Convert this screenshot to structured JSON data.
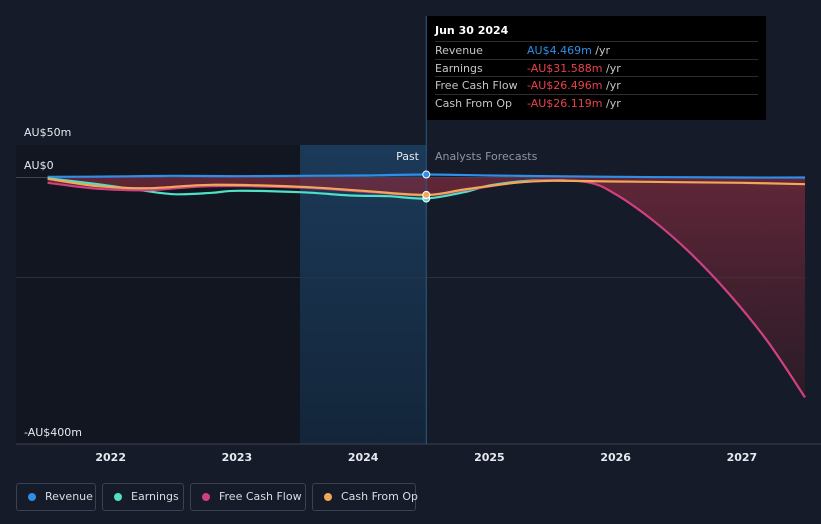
{
  "chart_data": {
    "type": "line",
    "y_axis": {
      "labels": [
        "AU$50m",
        "AU$0",
        "-AU$400m"
      ],
      "range": [
        -400,
        50
      ],
      "unit": "AU$m"
    },
    "x_axis": {
      "ticks": [
        "2022",
        "2023",
        "2024",
        "2025",
        "2026",
        "2027"
      ],
      "tick_values": [
        2022,
        2023,
        2024,
        2025,
        2026,
        2027
      ],
      "range": [
        2021.25,
        2027.5
      ]
    },
    "highlight_range": [
      2023.5,
      2024.5
    ],
    "divider_x": 2024.5,
    "region_labels": {
      "past": "Past",
      "forecast": "Analysts Forecasts"
    },
    "series": [
      {
        "name": "Revenue",
        "color": "#2e8ee8",
        "points": [
          [
            2021.5,
            1
          ],
          [
            2022,
            1.5
          ],
          [
            2022.5,
            2.5
          ],
          [
            2023,
            2
          ],
          [
            2023.5,
            2.5
          ],
          [
            2024,
            3
          ],
          [
            2024.5,
            4.469
          ],
          [
            2025,
            3
          ],
          [
            2025.5,
            2
          ],
          [
            2026,
            1
          ],
          [
            2026.5,
            0.5
          ],
          [
            2027,
            0
          ],
          [
            2027.5,
            0
          ]
        ]
      },
      {
        "name": "Earnings",
        "color": "#4fe0c6",
        "points": [
          [
            2021.5,
            -1
          ],
          [
            2021.9,
            -10
          ],
          [
            2022.2,
            -18
          ],
          [
            2022.5,
            -25
          ],
          [
            2022.8,
            -23
          ],
          [
            2023,
            -20
          ],
          [
            2023.5,
            -22
          ],
          [
            2023.9,
            -27
          ],
          [
            2024.2,
            -28
          ],
          [
            2024.5,
            -31.588
          ],
          [
            2024.8,
            -22
          ],
          [
            2025,
            -12
          ],
          [
            2025.3,
            -5
          ],
          [
            2025.6,
            -4
          ]
        ]
      },
      {
        "name": "Free Cash Flow",
        "color": "#d0407f",
        "points": [
          [
            2021.5,
            -8
          ],
          [
            2021.9,
            -17
          ],
          [
            2022.3,
            -19
          ],
          [
            2022.8,
            -13
          ],
          [
            2023.5,
            -15
          ],
          [
            2024,
            -21
          ],
          [
            2024.5,
            -26.496
          ],
          [
            2024.8,
            -19
          ],
          [
            2025.2,
            -8
          ],
          [
            2025.5,
            -4
          ],
          [
            2025.8,
            -8
          ],
          [
            2026,
            -25
          ],
          [
            2026.3,
            -65
          ],
          [
            2026.6,
            -115
          ],
          [
            2026.9,
            -175
          ],
          [
            2027.2,
            -245
          ],
          [
            2027.5,
            -330
          ]
        ]
      },
      {
        "name": "Cash From Op",
        "color": "#f0a858",
        "points": [
          [
            2021.5,
            -2
          ],
          [
            2021.9,
            -13
          ],
          [
            2022.3,
            -16
          ],
          [
            2022.8,
            -11
          ],
          [
            2023.5,
            -14
          ],
          [
            2024,
            -20
          ],
          [
            2024.5,
            -26.119
          ],
          [
            2024.8,
            -18
          ],
          [
            2025.2,
            -8
          ],
          [
            2025.5,
            -5
          ],
          [
            2026,
            -6
          ],
          [
            2026.5,
            -7
          ],
          [
            2027,
            -8
          ],
          [
            2027.5,
            -10
          ]
        ]
      }
    ],
    "tooltip": {
      "date": "Jun 30 2024",
      "rows": [
        {
          "label": "Revenue",
          "value": "AU$4.469m",
          "unit": "/yr",
          "color": "#2e8ee8"
        },
        {
          "label": "Earnings",
          "value": "-AU$31.588m",
          "unit": "/yr",
          "color": "#e8424a"
        },
        {
          "label": "Free Cash Flow",
          "value": "-AU$26.496m",
          "unit": "/yr",
          "color": "#e8424a"
        },
        {
          "label": "Cash From Op",
          "value": "-AU$26.119m",
          "unit": "/yr",
          "color": "#e8424a"
        }
      ]
    },
    "legend": [
      {
        "label": "Revenue",
        "color": "#2e8ee8"
      },
      {
        "label": "Earnings",
        "color": "#4fe0c6"
      },
      {
        "label": "Free Cash Flow",
        "color": "#d0407f"
      },
      {
        "label": "Cash From Op",
        "color": "#f0a858"
      }
    ]
  }
}
